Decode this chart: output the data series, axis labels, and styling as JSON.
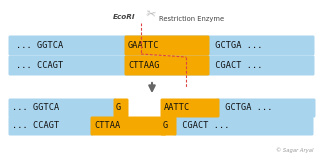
{
  "bg_color": "#ffffff",
  "blue": "#a8d4ee",
  "orange": "#f5a800",
  "text_color": "#111111",
  "arrow_color": "#666666",
  "cut_color": "#dd4444",
  "ecori_label": "EcoRI",
  "enzyme_label": "Restriction Enzyme",
  "credit": "© Sagar Aryal",
  "top_full": "... GGTCA GAATTC GCTGA ...",
  "bot_full": "... CCAGT CTTAAG CGACT ...",
  "res_left_top": "... GGTCA G",
  "res_left_bot": "... CCAGT CTTAA",
  "res_right_top": "AATTC GCTGA ...",
  "res_right_bot": "G CGACT ...",
  "font_size_dna": 6.2,
  "font_size_label": 5.2,
  "font_size_credit": 3.8,
  "font_size_scissors": 8.5
}
